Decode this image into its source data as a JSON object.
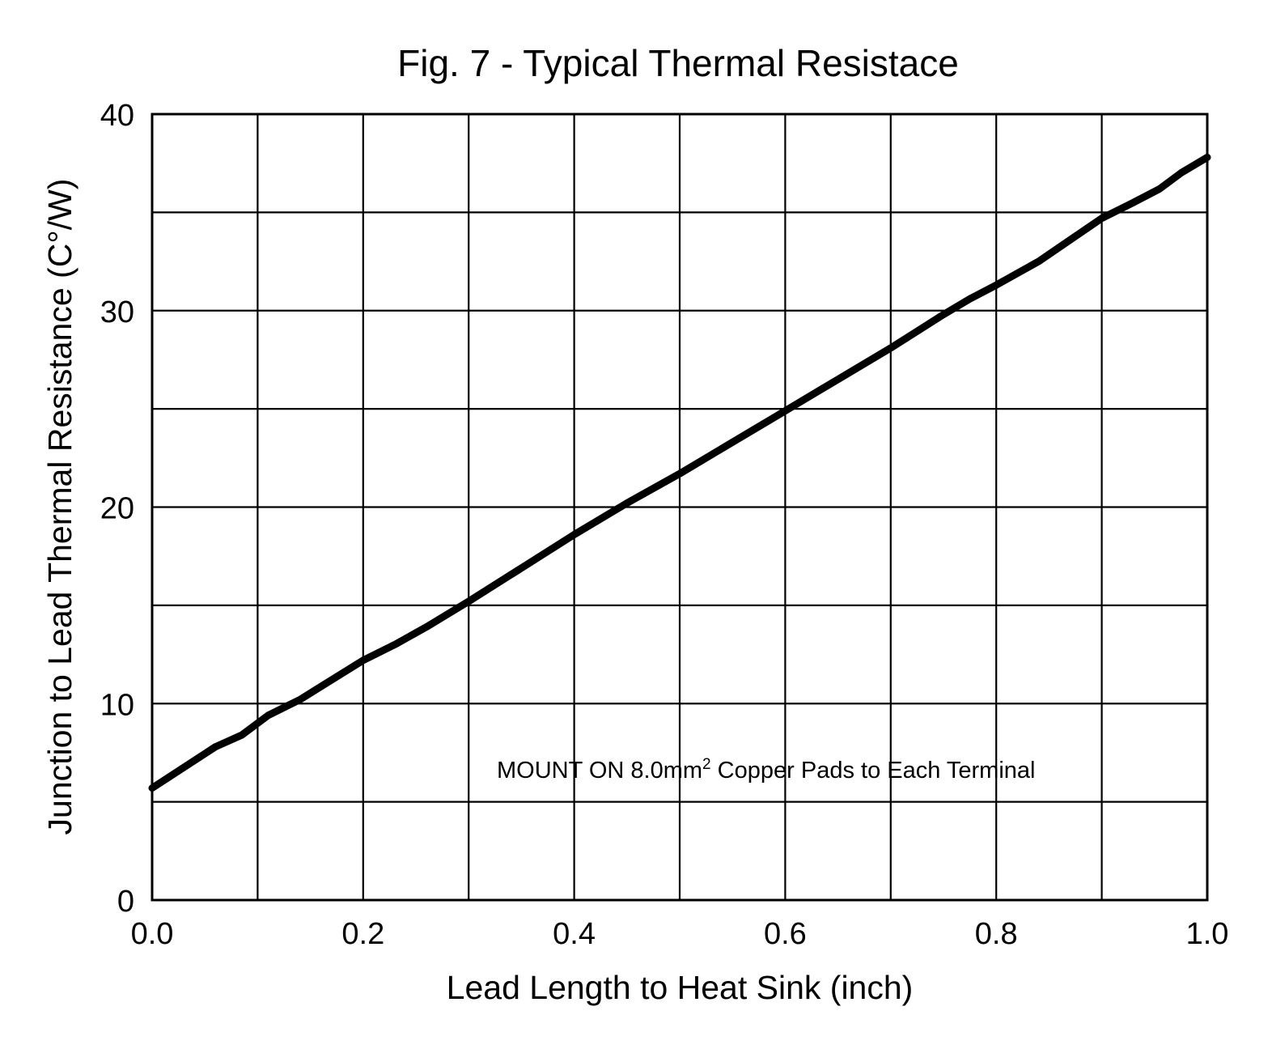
{
  "chart_data": {
    "type": "line",
    "title": "Fig. 7 - Typical Thermal Resistace",
    "xlabel": "Lead Length to Heat Sink (inch)",
    "ylabel": "Junction to Lead Thermal Resistance (C°/W)",
    "xlim": [
      0.0,
      1.0
    ],
    "ylim": [
      0,
      40
    ],
    "x_ticks": [
      0.0,
      0.2,
      0.4,
      0.6,
      0.8,
      1.0
    ],
    "x_tick_labels": [
      "0.0",
      "0.2",
      "0.4",
      "0.6",
      "0.8",
      "1.0"
    ],
    "x_grid": [
      0.0,
      0.1,
      0.2,
      0.3,
      0.4,
      0.5,
      0.6,
      0.7,
      0.8,
      0.9,
      1.0
    ],
    "y_ticks": [
      0,
      10,
      20,
      30,
      40
    ],
    "y_tick_labels": [
      "0",
      "10",
      "20",
      "30",
      "40"
    ],
    "y_grid": [
      0,
      5,
      10,
      15,
      20,
      25,
      30,
      35,
      40
    ],
    "grid": true,
    "annotation": {
      "text": "MOUNT ON 8.0mm",
      "superscript": "2",
      "suffix": " Copper Pads to Each Terminal"
    },
    "series": [
      {
        "name": "Typical Thermal Resistance",
        "color": "#000000",
        "x": [
          0.0,
          0.02,
          0.04,
          0.06,
          0.085,
          0.11,
          0.14,
          0.17,
          0.2,
          0.23,
          0.26,
          0.3,
          0.35,
          0.4,
          0.45,
          0.5,
          0.55,
          0.6,
          0.65,
          0.7,
          0.75,
          0.775,
          0.8,
          0.84,
          0.87,
          0.9,
          0.93,
          0.955,
          0.975,
          1.0
        ],
        "y": [
          5.7,
          6.4,
          7.1,
          7.8,
          8.4,
          9.4,
          10.2,
          11.2,
          12.2,
          13.0,
          13.9,
          15.2,
          16.9,
          18.6,
          20.2,
          21.7,
          23.3,
          24.9,
          26.5,
          28.1,
          29.8,
          30.6,
          31.3,
          32.5,
          33.6,
          34.7,
          35.5,
          36.2,
          37.0,
          37.8
        ]
      }
    ]
  }
}
